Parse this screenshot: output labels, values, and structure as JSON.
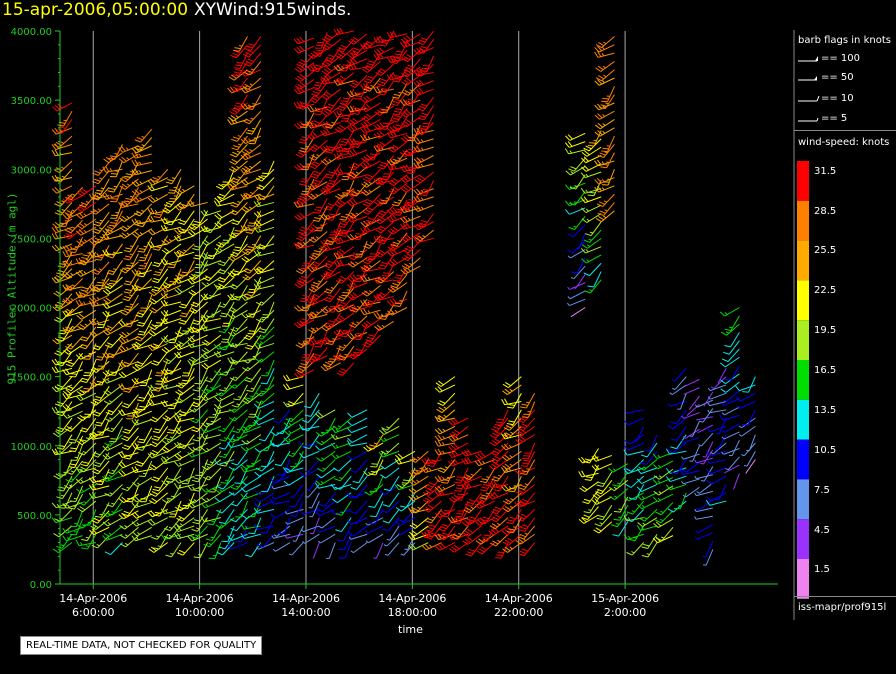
{
  "title": {
    "datetime": "15-apr-2006,05:00:00",
    "product": "XYWind:915winds."
  },
  "disclaimer": "REAL-TIME DATA, NOT CHECKED FOR QUALITY",
  "source": "iss-mapr/prof915l",
  "legend": {
    "barb_title": "barb flags in knots",
    "barb_keys": [
      "== 100",
      "== 50",
      "== 10",
      "== 5"
    ],
    "speed_title": "wind-speed: knots",
    "speed_bins": [
      {
        "label": "31.5",
        "color": "#ff0000"
      },
      {
        "label": "28.5",
        "color": "#ff8000"
      },
      {
        "label": "25.5",
        "color": "#ffaa00"
      },
      {
        "label": "22.5",
        "color": "#ffff00"
      },
      {
        "label": "19.5",
        "color": "#aaee22"
      },
      {
        "label": "16.5",
        "color": "#00dd00"
      },
      {
        "label": "13.5",
        "color": "#00eeee"
      },
      {
        "label": "10.5",
        "color": "#0000ff"
      },
      {
        "label": "7.5",
        "color": "#6495ed"
      },
      {
        "label": "4.5",
        "color": "#9932ff"
      },
      {
        "label": "1.5",
        "color": "#ee82ee"
      }
    ]
  },
  "colors": {
    "axis": "#22cc22",
    "grid": "#aaaaaa",
    "title_date": "#ffff00",
    "background": "#000000"
  },
  "chart_data": {
    "type": "wind-barb profile",
    "xlabel": "time",
    "ylabel": "915 Profiler Altitude (m agl)",
    "ylim": [
      0,
      4000
    ],
    "yticks": [
      "0.00",
      "500.00",
      "1000.00",
      "1500.00",
      "2000.00",
      "2500.00",
      "3000.00",
      "3500.00",
      "4000.00"
    ],
    "xlim_hours": [
      4.75,
      31.75
    ],
    "xticks": [
      {
        "line1": "14-Apr-2006",
        "line2": "6:00:00",
        "hour": 6
      },
      {
        "line1": "14-Apr-2006",
        "line2": "10:00:00",
        "hour": 10
      },
      {
        "line1": "14-Apr-2006",
        "line2": "14:00:00",
        "hour": 14
      },
      {
        "line1": "14-Apr-2006",
        "line2": "18:00:00",
        "hour": 18
      },
      {
        "line1": "14-Apr-2006",
        "line2": "22:00:00",
        "hour": 22
      },
      {
        "line1": "15-Apr-2006",
        "line2": "2:00:00",
        "hour": 26
      }
    ],
    "grid": "vertical lines at x ticks",
    "profiles": [
      {
        "hour": 5.2,
        "top": 3500,
        "bottom": 300,
        "upper_speed": 30,
        "lower_speed": 18
      },
      {
        "hour": 5.6,
        "top": 2900,
        "bottom": 350,
        "upper_speed": 30,
        "lower_speed": 17
      },
      {
        "hour": 6.1,
        "top": 2900,
        "bottom": 300,
        "upper_speed": 30,
        "lower_speed": 17
      },
      {
        "hour": 6.6,
        "top": 3100,
        "bottom": 350,
        "upper_speed": 29,
        "lower_speed": 20
      },
      {
        "hour": 7.1,
        "top": 3200,
        "bottom": 300,
        "upper_speed": 29,
        "lower_speed": 16
      },
      {
        "hour": 7.7,
        "top": 3200,
        "bottom": 350,
        "upper_speed": 29,
        "lower_speed": 20
      },
      {
        "hour": 8.2,
        "top": 3300,
        "bottom": 350,
        "upper_speed": 28,
        "lower_speed": 19
      },
      {
        "hour": 8.8,
        "top": 3000,
        "bottom": 300,
        "upper_speed": 26,
        "lower_speed": 20
      },
      {
        "hour": 9.3,
        "top": 3000,
        "bottom": 300,
        "upper_speed": 25,
        "lower_speed": 19
      },
      {
        "hour": 9.8,
        "top": 2900,
        "bottom": 300,
        "upper_speed": 24,
        "lower_speed": 20
      },
      {
        "hour": 10.3,
        "top": 2800,
        "bottom": 300,
        "upper_speed": 23,
        "lower_speed": 18
      },
      {
        "hour": 10.8,
        "top": 2700,
        "bottom": 300,
        "upper_speed": 22,
        "lower_speed": 17
      },
      {
        "hour": 11.3,
        "top": 3000,
        "bottom": 300,
        "upper_speed": 23,
        "lower_speed": 14
      },
      {
        "hour": 11.8,
        "top": 4000,
        "bottom": 300,
        "upper_speed": 31,
        "lower_speed": 12
      },
      {
        "hour": 12.3,
        "top": 4000,
        "bottom": 300,
        "upper_speed": 31,
        "lower_speed": 14
      },
      {
        "hour": 12.8,
        "top": 3100,
        "bottom": 300,
        "upper_speed": 24,
        "lower_speed": 10
      },
      {
        "hour": 13.4,
        "top": 1300,
        "bottom": 300,
        "upper_speed": 13,
        "lower_speed": 8
      },
      {
        "hour": 13.9,
        "top": 1500,
        "bottom": 300,
        "upper_speed": 22,
        "lower_speed": 6
      },
      {
        "hour": 14.3,
        "top": 4000,
        "bottom": 1550,
        "upper_speed": 32,
        "lower_speed": 30
      },
      {
        "hour": 14.8,
        "top": 4000,
        "bottom": 1650,
        "upper_speed": 32,
        "lower_speed": 30
      },
      {
        "hour": 15.3,
        "top": 4000,
        "bottom": 1600,
        "upper_speed": 32,
        "lower_speed": 30
      },
      {
        "hour": 15.8,
        "top": 4000,
        "bottom": 1600,
        "upper_speed": 32,
        "lower_speed": 30
      },
      {
        "hour": 16.3,
        "top": 4000,
        "bottom": 1700,
        "upper_speed": 32,
        "lower_speed": 30
      },
      {
        "hour": 16.8,
        "top": 4000,
        "bottom": 1800,
        "upper_speed": 32,
        "lower_speed": 30
      },
      {
        "hour": 17.3,
        "top": 4000,
        "bottom": 1900,
        "upper_speed": 32,
        "lower_speed": 30
      },
      {
        "hour": 17.8,
        "top": 4000,
        "bottom": 2000,
        "upper_speed": 32,
        "lower_speed": 30
      },
      {
        "hour": 18.3,
        "top": 4000,
        "bottom": 2300,
        "upper_speed": 32,
        "lower_speed": 30
      },
      {
        "hour": 18.8,
        "top": 4000,
        "bottom": 2500,
        "upper_speed": 32,
        "lower_speed": 30
      },
      {
        "hour": 14.5,
        "top": 1400,
        "bottom": 300,
        "upper_speed": 15,
        "lower_speed": 6
      },
      {
        "hour": 15.1,
        "top": 1300,
        "bottom": 300,
        "upper_speed": 20,
        "lower_speed": 8
      },
      {
        "hour": 15.7,
        "top": 1200,
        "bottom": 300,
        "upper_speed": 18,
        "lower_speed": 11
      },
      {
        "hour": 16.3,
        "top": 1300,
        "bottom": 300,
        "upper_speed": 14,
        "lower_speed": 8
      },
      {
        "hour": 16.9,
        "top": 1100,
        "bottom": 300,
        "upper_speed": 25,
        "lower_speed": 6
      },
      {
        "hour": 17.5,
        "top": 1200,
        "bottom": 300,
        "upper_speed": 20,
        "lower_speed": 7
      },
      {
        "hour": 18.1,
        "top": 1000,
        "bottom": 300,
        "upper_speed": 25,
        "lower_speed": 5
      },
      {
        "hour": 18.6,
        "top": 1000,
        "bottom": 300,
        "upper_speed": 30,
        "lower_speed": 22
      },
      {
        "hour": 19.1,
        "top": 1000,
        "bottom": 300,
        "upper_speed": 32,
        "lower_speed": 30
      },
      {
        "hour": 19.6,
        "top": 1500,
        "bottom": 300,
        "upper_speed": 24,
        "lower_speed": 31
      },
      {
        "hour": 20.1,
        "top": 1200,
        "bottom": 300,
        "upper_speed": 31,
        "lower_speed": 31
      },
      {
        "hour": 20.6,
        "top": 1000,
        "bottom": 300,
        "upper_speed": 31,
        "lower_speed": 31
      },
      {
        "hour": 21.1,
        "top": 1000,
        "bottom": 300,
        "upper_speed": 31,
        "lower_speed": 31
      },
      {
        "hour": 21.6,
        "top": 1300,
        "bottom": 300,
        "upper_speed": 31,
        "lower_speed": 31
      },
      {
        "hour": 22.1,
        "top": 1500,
        "bottom": 300,
        "upper_speed": 23,
        "lower_speed": 31
      },
      {
        "hour": 22.6,
        "top": 1400,
        "bottom": 300,
        "upper_speed": 31,
        "lower_speed": 31
      },
      {
        "hour": 24.5,
        "top": 3300,
        "bottom": 2000,
        "upper_speed": 22,
        "lower_speed": 4
      },
      {
        "hour": 25.1,
        "top": 3300,
        "bottom": 2200,
        "upper_speed": 25,
        "lower_speed": 14
      },
      {
        "hour": 25.6,
        "top": 4000,
        "bottom": 2700,
        "upper_speed": 28,
        "lower_speed": 27
      },
      {
        "hour": 25.0,
        "top": 1000,
        "bottom": 500,
        "upper_speed": 22,
        "lower_speed": 21
      },
      {
        "hour": 25.5,
        "top": 950,
        "bottom": 450,
        "upper_speed": 23,
        "lower_speed": 20
      },
      {
        "hour": 26.1,
        "top": 900,
        "bottom": 450,
        "upper_speed": 18,
        "lower_speed": 16
      },
      {
        "hour": 26.7,
        "top": 1300,
        "bottom": 300,
        "upper_speed": 10,
        "lower_speed": 18
      },
      {
        "hour": 27.2,
        "top": 1100,
        "bottom": 300,
        "upper_speed": 12,
        "lower_speed": 20
      },
      {
        "hour": 27.8,
        "top": 950,
        "bottom": 350,
        "upper_speed": 16,
        "lower_speed": 21
      },
      {
        "hour": 28.3,
        "top": 1600,
        "bottom": 600,
        "upper_speed": 8,
        "lower_speed": 15
      },
      {
        "hour": 28.8,
        "top": 1500,
        "bottom": 700,
        "upper_speed": 4,
        "lower_speed": 10
      },
      {
        "hour": 29.3,
        "top": 1400,
        "bottom": 250,
        "upper_speed": 5,
        "lower_speed": 9
      },
      {
        "hour": 29.8,
        "top": 1600,
        "bottom": 600,
        "upper_speed": 6,
        "lower_speed": 12
      },
      {
        "hour": 30.3,
        "top": 2000,
        "bottom": 800,
        "upper_speed": 17,
        "lower_speed": 5
      },
      {
        "hour": 30.9,
        "top": 1550,
        "bottom": 900,
        "upper_speed": 14,
        "lower_speed": 4
      }
    ]
  }
}
